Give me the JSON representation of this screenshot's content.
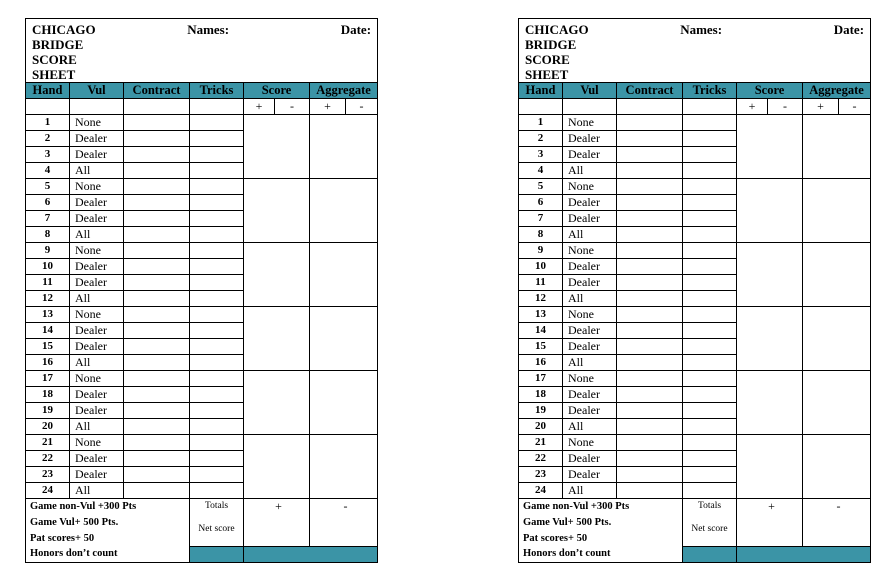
{
  "title": "CHICAGO BRIDGE SCORE SHEET",
  "title_lines": [
    "CHICAGO",
    "BRIDGE",
    "SCORE",
    "SHEET"
  ],
  "names_label": "Names:",
  "date_label": "Date:",
  "columns": [
    "Hand",
    "Vul",
    "Contract",
    "Tricks",
    "Score",
    "Aggregate"
  ],
  "plus": "+",
  "minus": "-",
  "hands": [
    {
      "n": "1",
      "vul": "None"
    },
    {
      "n": "2",
      "vul": "Dealer"
    },
    {
      "n": "3",
      "vul": "Dealer"
    },
    {
      "n": "4",
      "vul": "All"
    },
    {
      "n": "5",
      "vul": "None"
    },
    {
      "n": "6",
      "vul": "Dealer"
    },
    {
      "n": "7",
      "vul": "Dealer"
    },
    {
      "n": "8",
      "vul": "All"
    },
    {
      "n": "9",
      "vul": "None"
    },
    {
      "n": "10",
      "vul": "Dealer"
    },
    {
      "n": "11",
      "vul": "Dealer"
    },
    {
      "n": "12",
      "vul": "All"
    },
    {
      "n": "13",
      "vul": "None"
    },
    {
      "n": "14",
      "vul": "Dealer"
    },
    {
      "n": "15",
      "vul": "Dealer"
    },
    {
      "n": "16",
      "vul": "All"
    },
    {
      "n": "17",
      "vul": "None"
    },
    {
      "n": "18",
      "vul": "Dealer"
    },
    {
      "n": "19",
      "vul": "Dealer"
    },
    {
      "n": "20",
      "vul": "All"
    },
    {
      "n": "21",
      "vul": "None"
    },
    {
      "n": "22",
      "vul": "Dealer"
    },
    {
      "n": "23",
      "vul": "Dealer"
    },
    {
      "n": "24",
      "vul": "All"
    }
  ],
  "footer": {
    "rules": [
      "Game non-Vul +300 Pts",
      "Game Vul+ 500 Pts.",
      "Pat scores+ 50",
      "Honors don’t count"
    ],
    "totals_label": "Totals",
    "net_score_label": "Net score",
    "plus": "+",
    "minus": "-"
  },
  "colors": {
    "header_teal": "#3b94a6"
  }
}
